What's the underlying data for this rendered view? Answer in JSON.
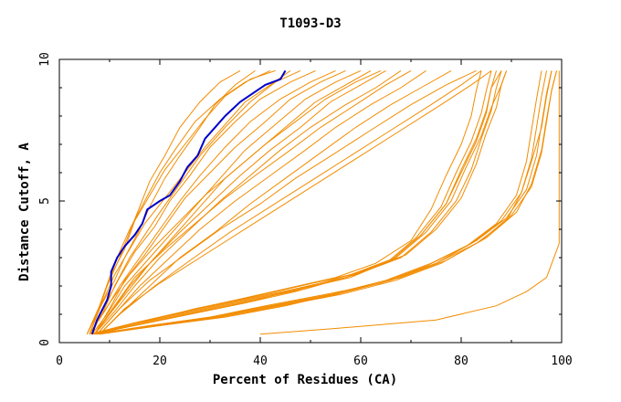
{
  "chart_data": {
    "type": "line",
    "title": "T1093-D3",
    "xlabel": "Percent of Residues (CA)",
    "ylabel": "Distance Cutoff, A",
    "xlim": [
      0,
      100
    ],
    "ylim": [
      0,
      10
    ],
    "xticks": [
      0,
      20,
      40,
      60,
      80,
      100
    ],
    "xtick_labels": [
      "0",
      "20",
      "40",
      "60",
      "80",
      "100"
    ],
    "yticks": [
      0,
      5,
      10
    ],
    "ytick_labels": [
      "0",
      "5",
      "10"
    ],
    "grid": false,
    "legend": "none",
    "colors": {
      "models": "#f28c00",
      "highlight": "#0000cc",
      "axis": "#000000"
    },
    "highlight_series": {
      "x": [
        6.5,
        7.5,
        9.5,
        10.3,
        10.3,
        11.5,
        13,
        15,
        16.5,
        17.5,
        20,
        22,
        24,
        25.5,
        27.5,
        29,
        31,
        33,
        36,
        38.5,
        41,
        44,
        45
      ],
      "y": [
        0.3,
        0.8,
        1.5,
        2.0,
        2.5,
        3.0,
        3.4,
        3.8,
        4.2,
        4.7,
        5.0,
        5.2,
        5.7,
        6.2,
        6.6,
        7.2,
        7.6,
        8.0,
        8.5,
        8.8,
        9.1,
        9.3,
        9.6
      ]
    },
    "series": [
      {
        "x": [
          5.5,
          8,
          10,
          12,
          14,
          17,
          20,
          23,
          27,
          32,
          37,
          42
        ],
        "y": [
          0.3,
          1.2,
          2.3,
          3.2,
          4.0,
          5.0,
          6.0,
          6.8,
          7.8,
          8.6,
          9.2,
          9.6
        ]
      },
      {
        "x": [
          6,
          8.5,
          11,
          14,
          17,
          20,
          24,
          28,
          33,
          38,
          43,
          48
        ],
        "y": [
          0.3,
          1.0,
          2.0,
          3.0,
          3.8,
          4.6,
          5.6,
          6.6,
          7.6,
          8.5,
          9.2,
          9.6
        ]
      },
      {
        "x": [
          6,
          9,
          12,
          16,
          20,
          24,
          28,
          33,
          38,
          44,
          50,
          55
        ],
        "y": [
          0.3,
          1.1,
          2.0,
          3.0,
          4.0,
          5.0,
          5.9,
          6.9,
          7.8,
          8.6,
          9.2,
          9.6
        ]
      },
      {
        "x": [
          6.5,
          9.5,
          13,
          18,
          22,
          27,
          32,
          37,
          43,
          49,
          55,
          60
        ],
        "y": [
          0.3,
          1.0,
          2.0,
          3.0,
          3.8,
          4.8,
          5.8,
          6.8,
          7.7,
          8.6,
          9.2,
          9.6
        ]
      },
      {
        "x": [
          7,
          10,
          14,
          19,
          24,
          30,
          36,
          42,
          48,
          54,
          60,
          65
        ],
        "y": [
          0.3,
          1.0,
          2.0,
          3.0,
          3.9,
          4.9,
          5.9,
          6.8,
          7.6,
          8.5,
          9.1,
          9.6
        ]
      },
      {
        "x": [
          7,
          11,
          15,
          20,
          26,
          32,
          38,
          44,
          50,
          57,
          63,
          68
        ],
        "y": [
          0.3,
          1.1,
          2.0,
          3.0,
          4.0,
          5.0,
          5.9,
          6.8,
          7.6,
          8.4,
          9.0,
          9.6
        ]
      },
      {
        "x": [
          7.5,
          11,
          16,
          22,
          28,
          35,
          42,
          49,
          55,
          62,
          68,
          73
        ],
        "y": [
          0.3,
          1.0,
          2.0,
          3.0,
          4.0,
          5.0,
          5.9,
          6.8,
          7.6,
          8.4,
          9.0,
          9.6
        ]
      },
      {
        "x": [
          8,
          12,
          18,
          24,
          31,
          38,
          45,
          52,
          59,
          66,
          72,
          78
        ],
        "y": [
          0.3,
          1.0,
          2.0,
          3.0,
          3.9,
          4.9,
          5.8,
          6.7,
          7.6,
          8.4,
          9.0,
          9.6
        ]
      },
      {
        "x": [
          8,
          13,
          20,
          28,
          36,
          44,
          52,
          60,
          68,
          76,
          82,
          86
        ],
        "y": [
          0.3,
          1.2,
          2.1,
          3.0,
          3.9,
          4.8,
          5.7,
          6.6,
          7.5,
          8.4,
          9.1,
          9.6
        ]
      },
      {
        "x": [
          6,
          8,
          11,
          13,
          16,
          18,
          21,
          24,
          28,
          31,
          35,
          39
        ],
        "y": [
          0.3,
          1.2,
          2.2,
          3.0,
          4.0,
          4.8,
          5.8,
          6.6,
          7.6,
          8.4,
          9.1,
          9.6
        ]
      },
      {
        "x": [
          6.5,
          9,
          12,
          15,
          19,
          22,
          26,
          30,
          35,
          40,
          46,
          51
        ],
        "y": [
          0.3,
          1.3,
          2.3,
          3.2,
          4.1,
          5.0,
          5.9,
          6.9,
          7.8,
          8.6,
          9.2,
          9.6
        ]
      },
      {
        "x": [
          7,
          10,
          13,
          17,
          21,
          25,
          30,
          35,
          41,
          46,
          52,
          57
        ],
        "y": [
          0.3,
          1.2,
          2.2,
          3.1,
          4.1,
          5.1,
          6.0,
          6.9,
          7.8,
          8.6,
          9.2,
          9.6
        ]
      },
      {
        "x": [
          5.5,
          7.5,
          9.5,
          12,
          14,
          16,
          18,
          21,
          24,
          28,
          32,
          36
        ],
        "y": [
          0.3,
          1.0,
          2.0,
          3.0,
          3.9,
          4.8,
          5.7,
          6.6,
          7.6,
          8.5,
          9.2,
          9.6
        ]
      },
      {
        "x": [
          7,
          11,
          15,
          21,
          27,
          33,
          39,
          46,
          52,
          59,
          65,
          70
        ],
        "y": [
          0.3,
          1.3,
          2.3,
          3.3,
          4.2,
          5.1,
          5.9,
          6.8,
          7.6,
          8.4,
          9.1,
          9.6
        ]
      },
      {
        "x": [
          8,
          12,
          19,
          26,
          34,
          42,
          50,
          58,
          66,
          74,
          80,
          84
        ],
        "y": [
          0.3,
          1.0,
          2.0,
          2.9,
          3.9,
          4.8,
          5.7,
          6.6,
          7.5,
          8.4,
          9.1,
          9.6
        ]
      },
      {
        "x": [
          6,
          8.5,
          11,
          14,
          17,
          21,
          25,
          29,
          33,
          37,
          42,
          46
        ],
        "y": [
          0.3,
          1.4,
          2.4,
          3.3,
          4.2,
          5.1,
          6.0,
          6.9,
          7.7,
          8.5,
          9.1,
          9.6
        ]
      },
      {
        "x": [
          7,
          10,
          14,
          18,
          23,
          28,
          33,
          39,
          45,
          51,
          57,
          62
        ],
        "y": [
          0.3,
          1.0,
          1.9,
          2.8,
          3.8,
          4.8,
          5.8,
          6.7,
          7.6,
          8.5,
          9.1,
          9.6
        ]
      },
      {
        "x": [
          5.5,
          8,
          10,
          13,
          15,
          18,
          21,
          25,
          29,
          33,
          38,
          43
        ],
        "y": [
          0.3,
          1.3,
          2.3,
          3.3,
          4.3,
          5.2,
          6.1,
          7.0,
          7.9,
          8.7,
          9.3,
          9.6
        ]
      },
      {
        "x": [
          6,
          10,
          14,
          19,
          24,
          29,
          35,
          41,
          47,
          53,
          59,
          64
        ],
        "y": [
          0.3,
          1.4,
          2.4,
          3.4,
          4.3,
          5.2,
          6.1,
          7.0,
          7.8,
          8.6,
          9.2,
          9.6
        ]
      },
      {
        "x": [
          7.5,
          12,
          18,
          25,
          32,
          40,
          47,
          55,
          62,
          70,
          77,
          83
        ],
        "y": [
          0.3,
          1.2,
          2.2,
          3.1,
          4.0,
          4.9,
          5.8,
          6.7,
          7.5,
          8.4,
          9.1,
          9.6
        ]
      },
      {
        "x": [
          7,
          15,
          25,
          35,
          45,
          55,
          63,
          70,
          74,
          77,
          80,
          82,
          83,
          84
        ],
        "y": [
          0.3,
          0.7,
          1.1,
          1.5,
          1.9,
          2.3,
          2.8,
          3.6,
          4.7,
          5.9,
          7.0,
          8.0,
          8.9,
          9.6
        ]
      },
      {
        "x": [
          6.5,
          15,
          26,
          37,
          48,
          58,
          66,
          72,
          77,
          80,
          83,
          85,
          86,
          87
        ],
        "y": [
          0.3,
          0.7,
          1.1,
          1.5,
          1.9,
          2.3,
          2.9,
          3.8,
          4.9,
          6.0,
          7.1,
          8.1,
          9.0,
          9.6
        ]
      },
      {
        "x": [
          7,
          16,
          27,
          38,
          49,
          59,
          68,
          74,
          79,
          82,
          84,
          86,
          87,
          88
        ],
        "y": [
          0.3,
          0.7,
          1.1,
          1.5,
          1.9,
          2.4,
          3.0,
          3.9,
          5.0,
          6.1,
          7.2,
          8.2,
          9.0,
          9.6
        ]
      },
      {
        "x": [
          7.5,
          17,
          28,
          39,
          50,
          60,
          69,
          75,
          80,
          83,
          85,
          87,
          88,
          89
        ],
        "y": [
          0.3,
          0.7,
          1.1,
          1.5,
          2.0,
          2.5,
          3.1,
          4.0,
          5.1,
          6.3,
          7.4,
          8.3,
          9.1,
          9.6
        ]
      },
      {
        "x": [
          6,
          15,
          25,
          36,
          47,
          57,
          65,
          71,
          76,
          79,
          82,
          84,
          85,
          86
        ],
        "y": [
          0.3,
          0.7,
          1.1,
          1.5,
          1.9,
          2.3,
          2.8,
          3.7,
          4.8,
          6.0,
          7.1,
          8.1,
          8.9,
          9.6
        ]
      },
      {
        "x": [
          7,
          16,
          27,
          38,
          48,
          58,
          67,
          73,
          78,
          81,
          84,
          86,
          88,
          89
        ],
        "y": [
          0.3,
          0.7,
          1.2,
          1.6,
          2.0,
          2.4,
          3.0,
          3.9,
          5.0,
          6.2,
          7.3,
          8.3,
          9.1,
          9.6
        ]
      },
      {
        "x": [
          6.5,
          15,
          26,
          37,
          47,
          57,
          66,
          72,
          77,
          80,
          83,
          85,
          86,
          88
        ],
        "y": [
          0.3,
          0.6,
          1.0,
          1.4,
          1.8,
          2.3,
          2.9,
          3.8,
          4.9,
          6.1,
          7.2,
          8.2,
          9.0,
          9.6
        ]
      },
      {
        "x": [
          7,
          18,
          30,
          42,
          54,
          65,
          74,
          82,
          88,
          92,
          94,
          95,
          96,
          97
        ],
        "y": [
          0.3,
          0.6,
          0.9,
          1.3,
          1.7,
          2.2,
          2.8,
          3.5,
          4.3,
          5.3,
          6.5,
          7.6,
          8.7,
          9.6
        ]
      },
      {
        "x": [
          7.5,
          19,
          31,
          43,
          55,
          66,
          75,
          83,
          89,
          93,
          95,
          96,
          97,
          98
        ],
        "y": [
          0.3,
          0.6,
          0.9,
          1.3,
          1.7,
          2.2,
          2.8,
          3.6,
          4.4,
          5.4,
          6.6,
          7.7,
          8.8,
          9.6
        ]
      },
      {
        "x": [
          8,
          20,
          32,
          44,
          56,
          67,
          76,
          84,
          90,
          94,
          96,
          97,
          98,
          99
        ],
        "y": [
          0.3,
          0.6,
          0.9,
          1.3,
          1.7,
          2.2,
          2.8,
          3.6,
          4.5,
          5.5,
          6.7,
          7.8,
          8.9,
          9.6
        ]
      },
      {
        "x": [
          7,
          18,
          30,
          41,
          53,
          64,
          73,
          81,
          87,
          91,
          93,
          94,
          95,
          96
        ],
        "y": [
          0.3,
          0.6,
          0.9,
          1.3,
          1.7,
          2.1,
          2.7,
          3.4,
          4.2,
          5.2,
          6.4,
          7.5,
          8.6,
          9.6
        ]
      },
      {
        "x": [
          8,
          20,
          33,
          45,
          57,
          68,
          77,
          85,
          91,
          94,
          96,
          97,
          98,
          99
        ],
        "y": [
          0.3,
          0.6,
          0.9,
          1.3,
          1.8,
          2.3,
          2.9,
          3.7,
          4.6,
          5.6,
          6.8,
          7.9,
          8.9,
          9.6
        ]
      },
      {
        "x": [
          7.5,
          19,
          31,
          43,
          55,
          66,
          75,
          83,
          89,
          92,
          94,
          96,
          97,
          98
        ],
        "y": [
          0.3,
          0.6,
          0.9,
          1.3,
          1.7,
          2.2,
          2.8,
          3.5,
          4.3,
          5.3,
          6.4,
          7.6,
          8.7,
          9.6
        ]
      },
      {
        "x": [
          40,
          55,
          75,
          87,
          93,
          97,
          99.5,
          99.5,
          99.5
        ],
        "y": [
          0.3,
          0.5,
          0.8,
          1.3,
          1.8,
          2.3,
          3.5,
          6.0,
          9.6
        ]
      }
    ]
  }
}
